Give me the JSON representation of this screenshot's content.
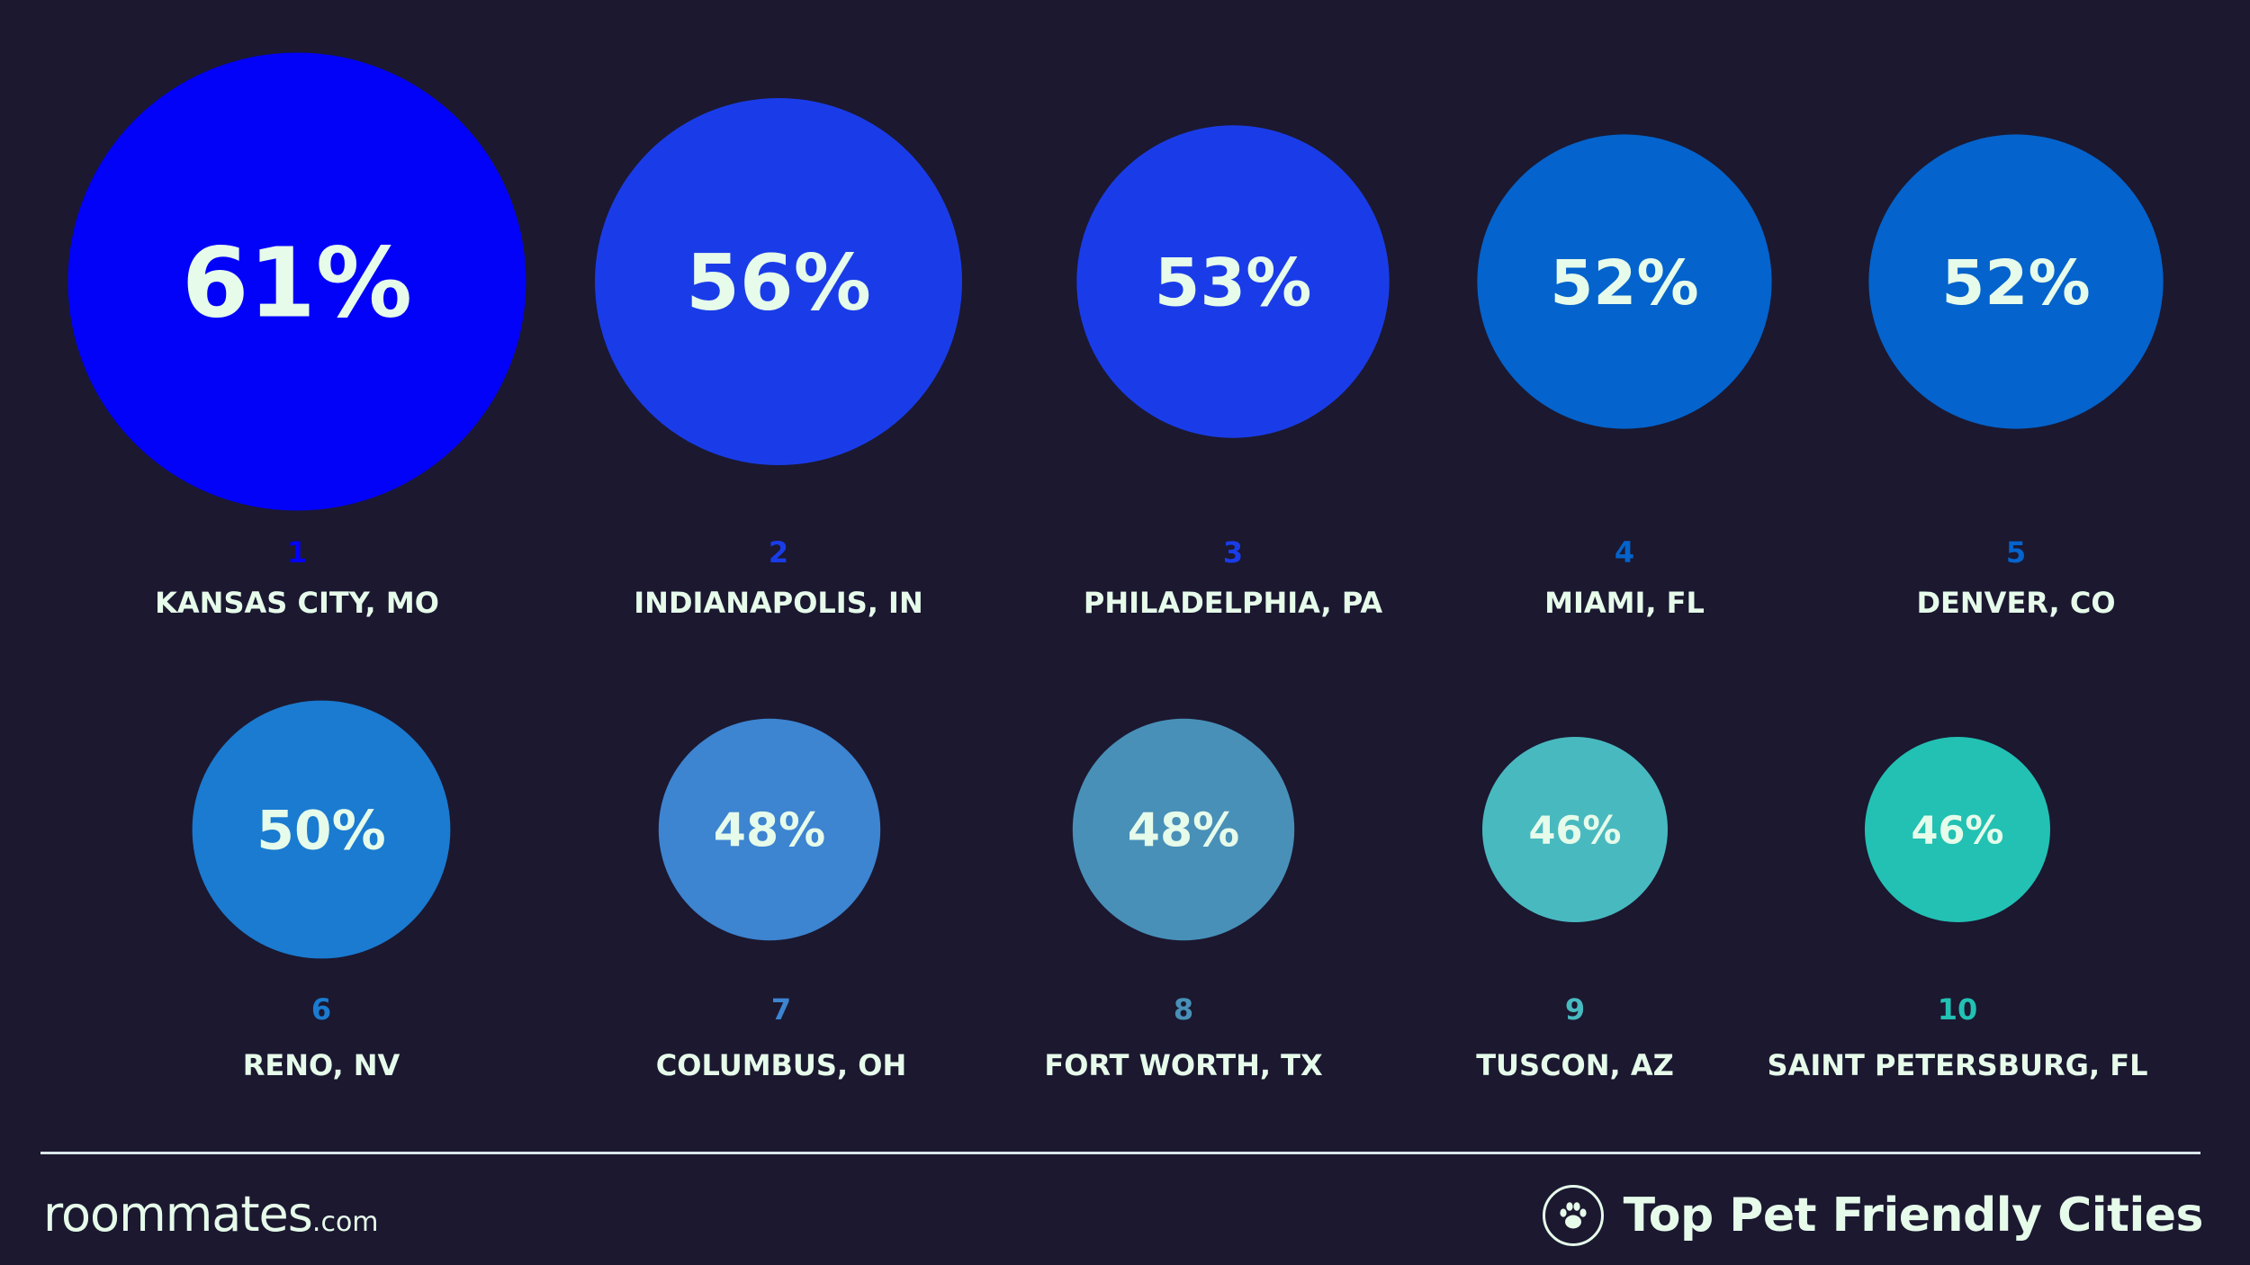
{
  "chart_data": {
    "type": "bubble",
    "title": "Top Pet Friendly Cities",
    "items": [
      {
        "rank": "1",
        "city": "KANSAS CITY, MO",
        "value": 61,
        "label": "61%",
        "color": "#0202f9"
      },
      {
        "rank": "2",
        "city": "INDIANAPOLIS, IN",
        "value": 56,
        "label": "56%",
        "color": "#1a3ce8"
      },
      {
        "rank": "3",
        "city": "PHILADELPHIA, PA",
        "value": 53,
        "label": "53%",
        "color": "#1a3ce8"
      },
      {
        "rank": "4",
        "city": "MIAMI, FL",
        "value": 52,
        "label": "52%",
        "color": "#0463cc"
      },
      {
        "rank": "5",
        "city": "DENVER, CO",
        "value": 52,
        "label": "52%",
        "color": "#0463cc"
      },
      {
        "rank": "6",
        "city": "RENO, NV",
        "value": 50,
        "label": "50%",
        "color": "#1a7bd0"
      },
      {
        "rank": "7",
        "city": "COLUMBUS, OH",
        "value": 48,
        "label": "48%",
        "color": "#3d84d1"
      },
      {
        "rank": "8",
        "city": "FORT WORTH, TX",
        "value": 48,
        "label": "48%",
        "color": "#4890b8"
      },
      {
        "rank": "9",
        "city": "TUSCON, AZ",
        "value": 46,
        "label": "46%",
        "color": "#49b9c0"
      },
      {
        "rank": "10",
        "city": "SAINT PETERSBURG, FL",
        "value": 46,
        "label": "46%",
        "color": "#22c1b3"
      }
    ]
  },
  "footer": {
    "brand_main": "roommates",
    "brand_suffix": ".com",
    "title": "Top Pet Friendly Cities",
    "paw_icon": "paw-icon"
  },
  "colors": {
    "background": "#1b1830",
    "text": "#e6fbea"
  }
}
